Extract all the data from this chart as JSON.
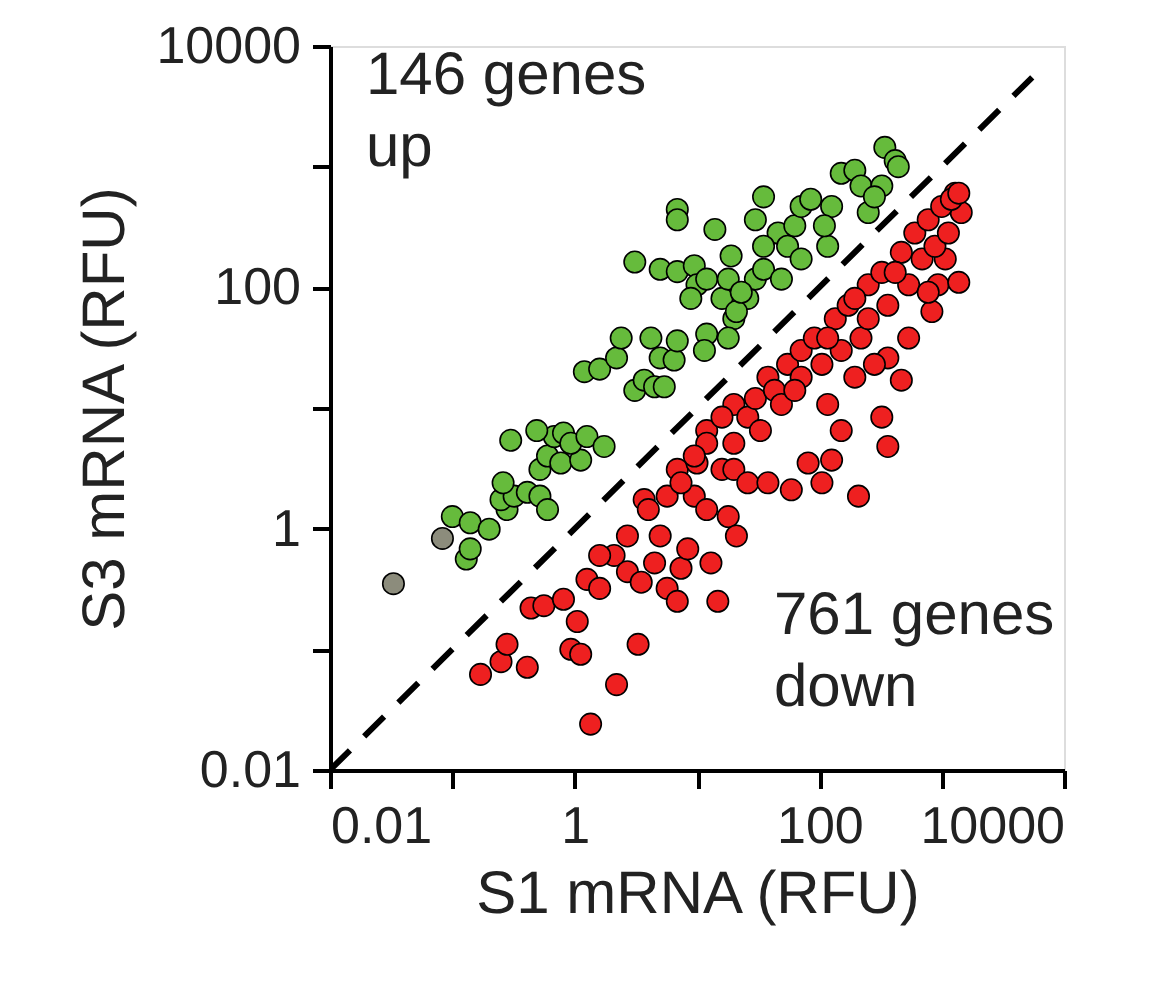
{
  "chart_data": {
    "type": "scatter",
    "xlabel": "S1 mRNA (RFU)",
    "ylabel": "S3 mRNA (RFU)",
    "annotations": [
      "146 genes\nup",
      "761 genes\ndown"
    ],
    "log": "xy",
    "grid": false,
    "marker": "circle",
    "xlim": [
      0.01,
      10000
    ],
    "ylim": [
      0.01,
      10000
    ],
    "xticks": [
      0.01,
      {
        "value": 0.1,
        "label": null
      },
      1,
      {
        "value": 10,
        "label": null
      },
      100,
      {
        "value": 1000,
        "label": null
      },
      10000
    ],
    "yticks": [
      0.01,
      {
        "value": 0.1,
        "label": null
      },
      1,
      {
        "value": 10,
        "label": null
      },
      100,
      {
        "value": 1000,
        "label": null
      },
      10000
    ],
    "series": [
      {
        "type": "line",
        "color": "#000000",
        "line_style": "dashed",
        "marker": "none",
        "x": [
          0.01,
          5500
        ],
        "values": [
          0.01,
          5500
        ]
      },
      {
        "color": "#8c8c7c",
        "x": [
          0.033,
          0.083
        ],
        "values": [
          0.35,
          0.83
        ]
      },
      {
        "color": "#66bb3c",
        "x": [
          0.1,
          0.14,
          0.13,
          0.14,
          0.2,
          0.28,
          0.25,
          0.32,
          0.26,
          0.41,
          0.52,
          0.6,
          0.52,
          0.6,
          0.77,
          0.68,
          0.49,
          0.81,
          1.12,
          0.93,
          1.26,
          1.74,
          0.3,
          1.2,
          1.6,
          2.2,
          2.4,
          3.1,
          3.7,
          4.5,
          5.4,
          4.2,
          5.0,
          6.5,
          6.9,
          3.1,
          5.0,
          6.9,
          9.5,
          10,
          8.9,
          12,
          16,
          18,
          20,
          26,
          30,
          35,
          49,
          12,
          18,
          11.5,
          21,
          6.9,
          6.9,
          14,
          19,
          30,
          35,
          46,
          55,
          63,
          71,
          71,
          85,
          117,
          126,
          110,
          151,
          195,
          219,
          251,
          324,
          282,
          343,
          417,
          442,
          35,
          23
        ],
        "values": [
          1.26,
          1.12,
          0.56,
          0.68,
          0.99,
          1.44,
          1.74,
          1.86,
          2.4,
          2.0,
          1.86,
          1.44,
          3.1,
          4.0,
          3.5,
          5.8,
          6.5,
          6.2,
          3.7,
          5.1,
          5.8,
          4.8,
          5.4,
          20,
          21,
          26,
          38,
          14,
          17,
          15,
          15,
          38,
          26,
          25,
          36,
          162,
          141,
          135,
          151,
          105,
          81,
          117,
          81,
          117,
          55,
          81,
          117,
          141,
          117,
          41,
          38,
          30,
          63,
          442,
          363,
          302,
          182,
          363,
          562,
          282,
          219,
          324,
          468,
          172,
          537,
          219,
          468,
          324,
          881,
          933,
          692,
          417,
          692,
          562,
          1445,
          1122,
          1000,
          219,
          91
        ]
      },
      {
        "color": "#ee2020",
        "x": [
          0.17,
          0.25,
          0.28,
          0.41,
          0.93,
          1.12,
          2.2,
          3.3,
          1.35,
          0.44,
          0.56,
          0.81,
          1.05,
          1.26,
          1.6,
          2.1,
          2.7,
          3.5,
          4.5,
          5.7,
          6.9,
          5.0,
          7.4,
          8.4,
          14.8,
          13,
          18,
          21,
          9.5,
          12,
          5.7,
          3.7,
          6.9,
          10,
          16,
          20,
          26,
          38,
          59,
          81,
          105,
          126,
          209,
          363,
          151,
          324,
          468,
          363,
          832,
          933,
          1380,
          1070,
          1445,
          1290,
          12,
          20,
          26,
          38,
          55,
          71,
          91,
          135,
          172,
          251,
          324,
          468,
          603,
          776,
          1000,
          1200,
          1380,
          12,
          16,
          30,
          43,
          49,
          71,
          105,
          151,
          219,
          251,
          363,
          537,
          692,
          881,
          1135,
          417,
          195,
          117,
          63,
          33,
          20,
          9.5,
          7.4,
          4.0,
          2.7,
          1.6,
          117,
          195,
          282,
          537,
          776
        ],
        "values": [
          0.062,
          0.079,
          0.11,
          0.071,
          0.1,
          0.091,
          0.051,
          0.11,
          0.024,
          0.22,
          0.23,
          0.26,
          0.17,
          0.38,
          0.32,
          0.6,
          0.44,
          0.36,
          0.52,
          0.32,
          0.25,
          0.87,
          0.47,
          0.68,
          0.25,
          0.52,
          1.26,
          0.87,
          1.86,
          1.44,
          1.86,
          1.74,
          3.1,
          3.5,
          3.1,
          3.1,
          2.4,
          2.4,
          2.1,
          3.5,
          2.4,
          3.7,
          1.86,
          4.8,
          6.5,
          8.4,
          17,
          26,
          63,
          105,
          110,
          172,
          417,
          603,
          6.5,
          10.7,
          8.4,
          18,
          23,
          30,
          38,
          55,
          71,
          105,
          133,
          195,
          282,
          363,
          468,
          537,
          603,
          5.1,
          8.4,
          12,
          14,
          10.7,
          18,
          23,
          30,
          38,
          55,
          71,
          105,
          172,
          219,
          282,
          133,
          81,
          38,
          14,
          6.5,
          5.1,
          4.0,
          2.4,
          1.44,
          0.87,
          0.6,
          10.7,
          18,
          23,
          38,
          91
        ]
      }
    ]
  }
}
